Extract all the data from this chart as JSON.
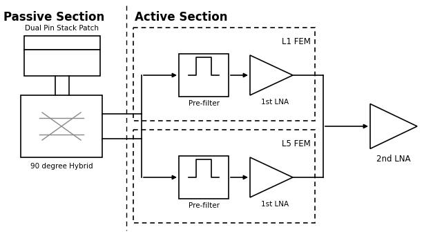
{
  "passive_section_label": "Passive Section",
  "active_section_label": "Active Section",
  "patch_label": "Dual Pin Stack Patch",
  "hybrid_label": "90 degree Hybrid",
  "prefilter_label1": "Pre-filter",
  "lna1_label1": "1st LNA",
  "fem1_label": "L1 FEM",
  "prefilter_label2": "Pre-filter",
  "lna1_label2": "1st LNA",
  "fem2_label": "L5 FEM",
  "lna2_label": "2nd LNA",
  "bg_color": "#ffffff",
  "line_color": "#000000"
}
